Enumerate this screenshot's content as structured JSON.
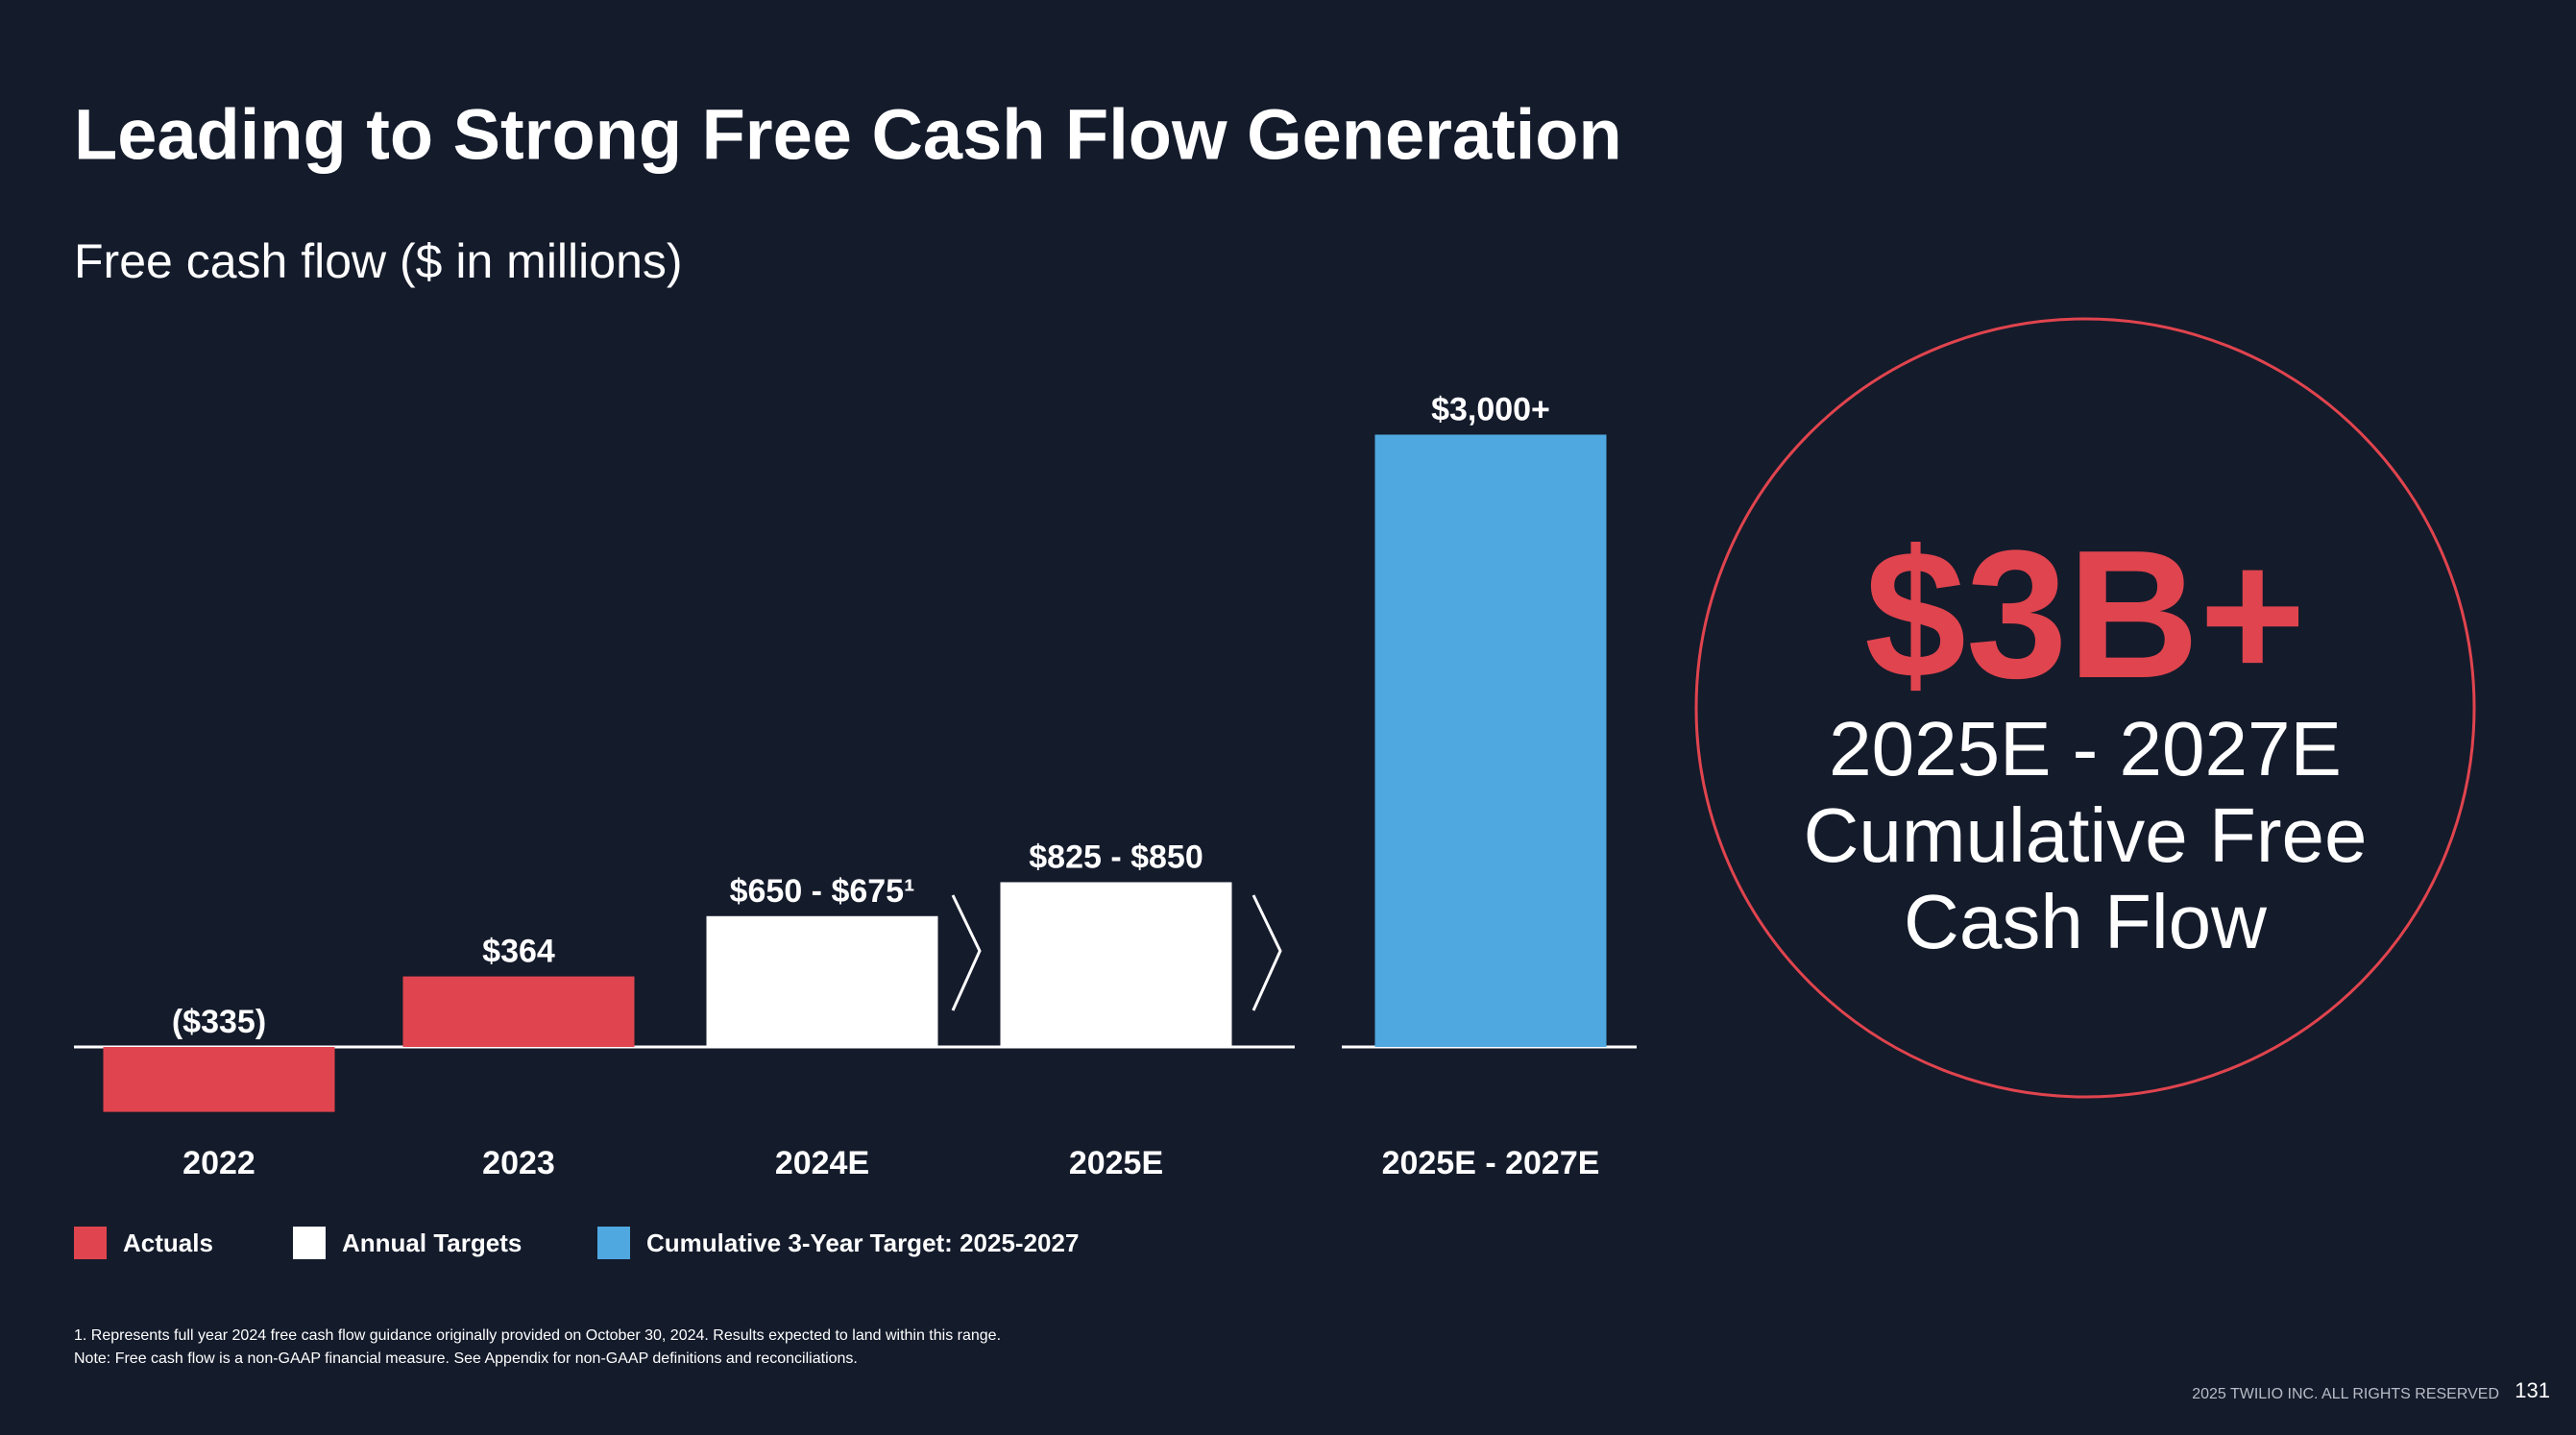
{
  "chart_data": {
    "type": "bar",
    "title": "Leading to Strong Free Cash Flow Generation",
    "subtitle": "Free cash flow ($ in millions)",
    "categories": [
      "2022",
      "2023",
      "2024E",
      "2025E",
      "2025E - 2027E"
    ],
    "series": [
      {
        "name": "Actuals",
        "color": "#e0444e",
        "values": [
          -335,
          364,
          null,
          null,
          null
        ],
        "value_labels": [
          "($335)",
          "$364",
          null,
          null,
          null
        ]
      },
      {
        "name": "Annual Targets",
        "color": "#ffffff",
        "values": [
          null,
          null,
          675,
          850,
          null
        ],
        "value_labels": [
          null,
          null,
          "$650 - $675¹",
          "$825 - $850",
          null
        ]
      },
      {
        "name": "Cumulative 3-Year Target: 2025-2027",
        "color": "#4fa8e0",
        "values": [
          null,
          null,
          null,
          null,
          3000
        ],
        "value_labels": [
          null,
          null,
          null,
          null,
          "$3,000+"
        ],
        "axis": "y2"
      }
    ],
    "ylim": [
      -400,
      900
    ],
    "y2lim": [
      0,
      3200
    ],
    "grid": false,
    "legend": "bottom-left"
  },
  "callout": {
    "headline": "$3B+",
    "period": "2025E - 2027E",
    "text": "Cumulative Free Cash Flow"
  },
  "footnotes": [
    "1. Represents full year 2024 free cash flow guidance originally provided on October 30, 2024. Results expected to land within this range.",
    "Note: Free cash flow is a non-GAAP financial measure. See Appendix for non-GAAP definitions and reconciliations."
  ],
  "footer": {
    "copyright": "2025 TWILIO INC. ALL RIGHTS RESERVED",
    "page": "131"
  }
}
